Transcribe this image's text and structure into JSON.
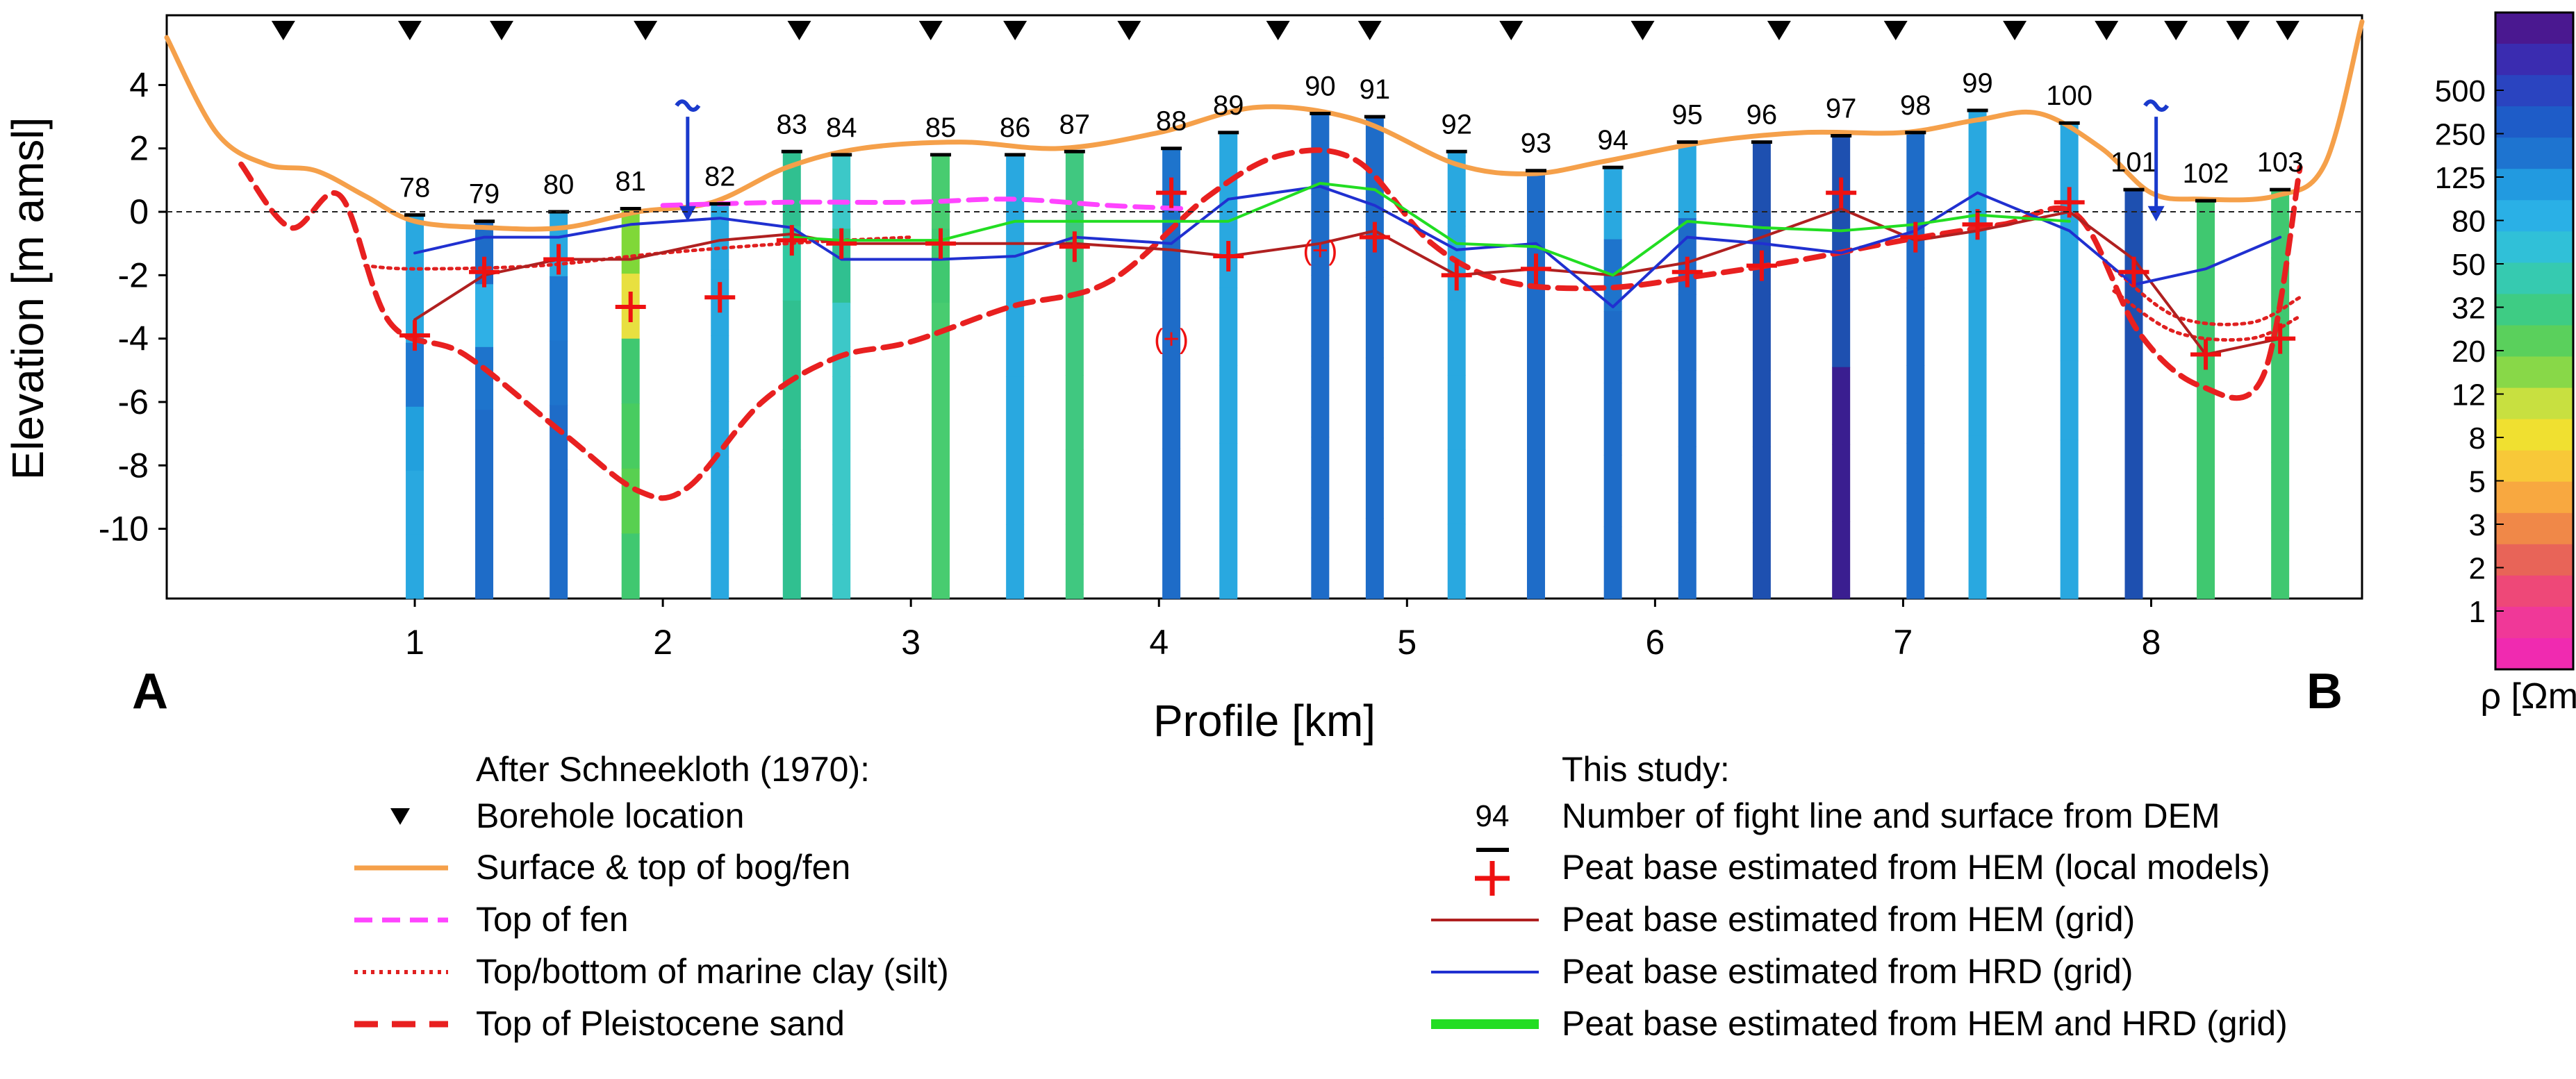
{
  "chart_data": {
    "type": "profile-section",
    "xlabel": "Profile [km]",
    "ylabel": "Elevation [m amsl]",
    "xlim": [
      0.0,
      8.85
    ],
    "ylim": [
      -12.2,
      6.2
    ],
    "xticks": [
      1,
      2,
      3,
      4,
      5,
      6,
      7,
      8
    ],
    "yticks": [
      4,
      2,
      0,
      -2,
      -4,
      -6,
      -8,
      -10
    ],
    "left_label": "A",
    "right_label": "B",
    "boreholes_km": [
      0.47,
      0.98,
      1.35,
      1.93,
      2.55,
      3.08,
      3.42,
      3.88,
      4.48,
      4.85,
      5.42,
      5.95,
      6.5,
      6.97,
      7.45,
      7.82,
      8.1,
      8.35,
      8.55
    ],
    "water_markers_km": [
      2.1,
      8.02
    ],
    "flight_lines": [
      {
        "id": "78",
        "x": 1.0,
        "surface": -0.1,
        "colors": [
          "#29a8e0",
          "#29a8e0",
          "#1e78d0",
          "#22a0dd",
          "#29a8e0",
          "#29a8e0"
        ]
      },
      {
        "id": "79",
        "x": 1.28,
        "surface": -0.3,
        "colors": [
          "#1e6cc8",
          "#2fb0e6",
          "#1e74cc",
          "#1e6cc8",
          "#1e6cc8",
          "#1e6cc8"
        ]
      },
      {
        "id": "80",
        "x": 1.58,
        "surface": 0.0,
        "colors": [
          "#29a8e0",
          "#1e78d0",
          "#1e74cc",
          "#1e6cc8",
          "#1e6cc8",
          "#1e6cc8"
        ]
      },
      {
        "id": "81",
        "x": 1.87,
        "surface": 0.1,
        "colors": [
          "#80d838",
          "#e8e040",
          "#40c870",
          "#48cc60",
          "#58d050",
          "#40c870"
        ]
      },
      {
        "id": "82",
        "x": 2.23,
        "surface": 0.25,
        "colors": [
          "#29a8e0",
          "#29a8e0",
          "#29a8e0",
          "#29a8e0",
          "#29a8e0",
          "#29a8e0"
        ]
      },
      {
        "id": "83",
        "x": 2.52,
        "surface": 1.9,
        "colors": [
          "#30c090",
          "#30c8a0",
          "#30c090",
          "#30c090",
          "#30c090",
          "#30c090"
        ]
      },
      {
        "id": "84",
        "x": 2.72,
        "surface": 1.8,
        "colors": [
          "#3cc8c8",
          "#30c090",
          "#3cc8c8",
          "#3cc8c8",
          "#3cc8c8",
          "#3cc8c8"
        ]
      },
      {
        "id": "85",
        "x": 3.12,
        "surface": 1.8,
        "colors": [
          "#48cc70",
          "#40c870",
          "#48cc70",
          "#48cc70",
          "#48cc70",
          "#48cc70"
        ]
      },
      {
        "id": "86",
        "x": 3.42,
        "surface": 1.8,
        "colors": [
          "#29a8e0",
          "#29a8e0",
          "#29a8e0",
          "#29a8e0",
          "#29a8e0",
          "#29a8e0"
        ]
      },
      {
        "id": "87",
        "x": 3.66,
        "surface": 1.9,
        "colors": [
          "#40c880",
          "#40c880",
          "#40c880",
          "#40c880",
          "#40c880",
          "#40c880"
        ]
      },
      {
        "id": "88",
        "x": 4.05,
        "surface": 2.0,
        "colors": [
          "#1e74cc",
          "#1e6cc8",
          "#1e6cc8",
          "#1e6cc8",
          "#1e6cc8",
          "#1e6cc8"
        ]
      },
      {
        "id": "89",
        "x": 4.28,
        "surface": 2.5,
        "colors": [
          "#29a8e0",
          "#29a8e0",
          "#29a8e0",
          "#29a8e0",
          "#29a8e0",
          "#29a8e0"
        ]
      },
      {
        "id": "90",
        "x": 4.65,
        "surface": 3.1,
        "colors": [
          "#1e6cc8",
          "#1e6cc8",
          "#1e6cc8",
          "#1e6cc8",
          "#1e6cc8",
          "#1e6cc8"
        ]
      },
      {
        "id": "91",
        "x": 4.87,
        "surface": 3.0,
        "colors": [
          "#1e6cc8",
          "#1e6cc8",
          "#1e6cc8",
          "#1e6cc8",
          "#1e6cc8",
          "#1e6cc8"
        ]
      },
      {
        "id": "92",
        "x": 5.2,
        "surface": 1.9,
        "colors": [
          "#29a8e0",
          "#29a8e0",
          "#29a8e0",
          "#29a8e0",
          "#29a8e0",
          "#29a8e0"
        ]
      },
      {
        "id": "93",
        "x": 5.52,
        "surface": 1.3,
        "colors": [
          "#1e6cc8",
          "#1e6cc8",
          "#1e6cc8",
          "#1e6cc8",
          "#1e6cc8",
          "#1e6cc8"
        ]
      },
      {
        "id": "94",
        "x": 5.83,
        "surface": 1.4,
        "colors": [
          "#29a8e0",
          "#1e74cc",
          "#1e6cc8",
          "#1e6cc8",
          "#1e6cc8",
          "#1e6cc8"
        ]
      },
      {
        "id": "95",
        "x": 6.13,
        "surface": 2.2,
        "colors": [
          "#29a8e0",
          "#1e6cc8",
          "#1e6cc8",
          "#1e6cc8",
          "#1e6cc8",
          "#1e6cc8"
        ]
      },
      {
        "id": "96",
        "x": 6.43,
        "surface": 2.2,
        "colors": [
          "#1e50b0",
          "#1e50b0",
          "#1e50b0",
          "#1e50b0",
          "#1e50b0",
          "#1e50b0"
        ]
      },
      {
        "id": "97",
        "x": 6.75,
        "surface": 2.4,
        "colors": [
          "#1e50b0",
          "#1e50b0",
          "#1e50b0",
          "#3a1e90",
          "#3a1e90",
          "#3a1e90"
        ]
      },
      {
        "id": "98",
        "x": 7.05,
        "surface": 2.5,
        "colors": [
          "#1e6cc8",
          "#1e6cc8",
          "#1e6cc8",
          "#1e6cc8",
          "#1e6cc8",
          "#1e6cc8"
        ]
      },
      {
        "id": "99",
        "x": 7.3,
        "surface": 3.2,
        "colors": [
          "#29a8e0",
          "#29a8e0",
          "#29a8e0",
          "#29a8e0",
          "#29a8e0",
          "#29a8e0"
        ]
      },
      {
        "id": "100",
        "x": 7.67,
        "surface": 2.8,
        "colors": [
          "#29a8e0",
          "#29a8e0",
          "#29a8e0",
          "#29a8e0",
          "#29a8e0",
          "#29a8e0"
        ]
      },
      {
        "id": "101",
        "x": 7.93,
        "surface": 0.7,
        "colors": [
          "#1e50b0",
          "#1e50b0",
          "#1e50b0",
          "#1e50b0",
          "#1e50b0",
          "#1e50b0"
        ]
      },
      {
        "id": "102",
        "x": 8.22,
        "surface": 0.35,
        "colors": [
          "#40c870",
          "#40c870",
          "#40c870",
          "#40c870",
          "#40c870",
          "#40c870"
        ]
      },
      {
        "id": "103",
        "x": 8.52,
        "surface": 0.7,
        "colors": [
          "#40c870",
          "#40c870",
          "#40c870",
          "#40c870",
          "#40c870",
          "#40c870"
        ]
      }
    ],
    "series": [
      {
        "name": "Surface & top of bog/fen",
        "color": "#f5a04a",
        "style": "solid",
        "x": [
          0.0,
          0.2,
          0.4,
          0.6,
          0.8,
          1.0,
          1.3,
          1.6,
          1.9,
          2.2,
          2.5,
          2.8,
          3.2,
          3.6,
          4.0,
          4.4,
          4.8,
          5.2,
          5.5,
          5.8,
          6.2,
          6.6,
          7.0,
          7.3,
          7.55,
          7.8,
          8.0,
          8.2,
          8.5,
          8.7,
          8.85
        ],
        "y": [
          5.5,
          2.5,
          1.5,
          1.3,
          0.5,
          -0.3,
          -0.5,
          -0.5,
          0.0,
          0.3,
          1.4,
          2.0,
          2.2,
          2.0,
          2.5,
          3.3,
          2.9,
          1.5,
          1.2,
          1.6,
          2.2,
          2.5,
          2.5,
          2.9,
          3.1,
          2.0,
          0.6,
          0.4,
          0.5,
          1.5,
          6.0
        ]
      },
      {
        "name": "Top of fen",
        "color": "#ff44ff",
        "style": "dash",
        "x": [
          2.0,
          2.5,
          3.0,
          3.4,
          3.8,
          4.1
        ],
        "y": [
          0.2,
          0.3,
          0.3,
          0.4,
          0.2,
          0.1
        ]
      },
      {
        "name": "Top/bottom of marine clay (silt)",
        "color": "#e02020",
        "style": "dot",
        "x": [
          0.8,
          1.0,
          1.5,
          2.0,
          2.5,
          3.0
        ],
        "y": [
          -1.7,
          -1.8,
          -1.7,
          -1.3,
          -1.0,
          -0.8
        ]
      },
      {
        "name": "Top/bottom of marine clay (silt)",
        "color": "#e02020",
        "style": "dot",
        "x": [
          7.85,
          8.1,
          8.4,
          8.6
        ],
        "y": [
          -1.8,
          -3.3,
          -3.5,
          -2.7
        ]
      },
      {
        "name": "Top/bottom of marine clay (silt)",
        "color": "#e02020",
        "style": "dot",
        "x": [
          7.85,
          8.1,
          8.4,
          8.6
        ],
        "y": [
          -2.5,
          -3.8,
          -4.0,
          -3.3
        ]
      },
      {
        "name": "Top of Pleistocene sand",
        "color": "#e82020",
        "style": "dash",
        "x": [
          0.3,
          0.5,
          0.7,
          0.9,
          1.2,
          1.6,
          1.9,
          2.1,
          2.4,
          2.7,
          3.0,
          3.4,
          3.8,
          4.2,
          4.5,
          4.8,
          5.1,
          5.4,
          5.8,
          6.2,
          6.6,
          7.0,
          7.4,
          7.7,
          7.95,
          8.2,
          8.45,
          8.6
        ],
        "y": [
          1.5,
          -0.5,
          0.5,
          -3.5,
          -4.5,
          -7.0,
          -8.8,
          -8.7,
          -6.0,
          -4.6,
          -4.1,
          -3.0,
          -2.2,
          0.5,
          1.8,
          1.6,
          -1.0,
          -2.2,
          -2.4,
          -2.0,
          -1.5,
          -0.9,
          -0.4,
          -0.1,
          -3.8,
          -5.5,
          -5.2,
          1.4
        ]
      },
      {
        "name": "Peat base estimated from HEM (grid)",
        "color": "#b02020",
        "style": "solid",
        "x": [
          1.0,
          1.28,
          1.58,
          1.87,
          2.23,
          2.52,
          2.72,
          3.12,
          3.42,
          3.66,
          4.05,
          4.28,
          4.65,
          4.87,
          5.2,
          5.52,
          5.83,
          6.13,
          6.43,
          6.75,
          7.05,
          7.3,
          7.67,
          7.93,
          8.22,
          8.52
        ],
        "y": [
          -3.4,
          -2.0,
          -1.5,
          -1.5,
          -0.9,
          -0.7,
          -1.0,
          -1.0,
          -1.0,
          -1.0,
          -1.2,
          -1.4,
          -1.0,
          -0.6,
          -2.0,
          -1.8,
          -2.0,
          -1.6,
          -0.8,
          0.1,
          -0.9,
          -0.6,
          0.0,
          -1.5,
          -4.5,
          -4.0
        ]
      },
      {
        "name": "Peat base estimated from HRD (grid)",
        "color": "#2030d0",
        "style": "solid",
        "x": [
          1.0,
          1.28,
          1.58,
          1.87,
          2.23,
          2.52,
          2.72,
          3.12,
          3.42,
          3.66,
          4.05,
          4.28,
          4.65,
          4.87,
          5.2,
          5.52,
          5.83,
          6.13,
          6.43,
          6.75,
          7.05,
          7.3,
          7.67,
          7.93,
          8.22,
          8.52
        ],
        "y": [
          -1.3,
          -0.8,
          -0.8,
          -0.4,
          -0.2,
          -0.5,
          -1.5,
          -1.5,
          -1.4,
          -0.8,
          -1.0,
          0.4,
          0.8,
          0.2,
          -1.2,
          -1.0,
          -3.0,
          -0.8,
          -1.0,
          -1.3,
          -0.6,
          0.6,
          -0.6,
          -2.3,
          -1.8,
          -0.8
        ]
      },
      {
        "name": "Peat base estimated from HEM and HRD (grid)",
        "color": "#22dd22",
        "style": "thick",
        "x": [
          2.52,
          2.72,
          3.12,
          3.42,
          3.66,
          4.05,
          4.28,
          4.65,
          4.87,
          5.2,
          5.52,
          5.83,
          6.13,
          6.43,
          6.75,
          7.05,
          7.3,
          7.67
        ],
        "y": [
          -0.8,
          -0.9,
          -0.9,
          -0.3,
          -0.3,
          -0.3,
          -0.3,
          0.9,
          0.7,
          -1.0,
          -1.1,
          -2.0,
          -0.3,
          -0.5,
          -0.6,
          -0.4,
          -0.1,
          -0.3
        ]
      }
    ],
    "peat_base_crosses": [
      {
        "x": 1.0,
        "y": -3.9
      },
      {
        "x": 1.28,
        "y": -1.9
      },
      {
        "x": 1.58,
        "y": -1.5
      },
      {
        "x": 1.87,
        "y": -3.0
      },
      {
        "x": 2.23,
        "y": -2.7
      },
      {
        "x": 2.52,
        "y": -0.9
      },
      {
        "x": 2.72,
        "y": -1.0
      },
      {
        "x": 3.12,
        "y": -1.0
      },
      {
        "x": 3.66,
        "y": -1.1
      },
      {
        "x": 4.05,
        "y": 0.6
      },
      {
        "x": 4.28,
        "y": -1.4
      },
      {
        "x": 4.87,
        "y": -0.8
      },
      {
        "x": 5.2,
        "y": -2.0
      },
      {
        "x": 5.52,
        "y": -1.8
      },
      {
        "x": 6.13,
        "y": -1.9
      },
      {
        "x": 6.43,
        "y": -1.7
      },
      {
        "x": 6.75,
        "y": 0.6
      },
      {
        "x": 7.05,
        "y": -0.8
      },
      {
        "x": 7.3,
        "y": -0.4
      },
      {
        "x": 7.67,
        "y": 0.3
      },
      {
        "x": 7.93,
        "y": -1.9
      },
      {
        "x": 8.22,
        "y": -4.5
      },
      {
        "x": 8.52,
        "y": -4.0
      }
    ],
    "bracket_labels": [
      {
        "text": "(+)",
        "x": 4.05,
        "y": -4.0
      },
      {
        "text": "(+)",
        "x": 4.65,
        "y": -1.2
      }
    ],
    "colorbar": {
      "label": "ρ [Ωm]",
      "ticks": [
        "500",
        "250",
        "125",
        "80",
        "50",
        "32",
        "20",
        "12",
        "8",
        "5",
        "3",
        "2",
        "1"
      ],
      "colors": [
        "#4a1890",
        "#3a2cb0",
        "#2a44c0",
        "#1e5cc8",
        "#1e74d0",
        "#229ae0",
        "#2ab0e6",
        "#30c0d8",
        "#36cab0",
        "#3ecc84",
        "#5ad05c",
        "#88d848",
        "#c8e040",
        "#f0e030",
        "#f8c838",
        "#f8a840",
        "#f08848",
        "#e86458",
        "#ee4878",
        "#f03898",
        "#f02ab0"
      ]
    }
  },
  "legend": {
    "left_header": "After Schneekloth (1970):",
    "borehole": "Borehole location",
    "surface": "Surface & top of bog/fen",
    "fen": "Top of fen",
    "clay": "Top/bottom of marine clay (silt)",
    "sand": "Top of Pleistocene sand",
    "right_header": "This study:",
    "flight_number": "94",
    "flight_line": "Number of fight line and surface from DEM",
    "peat_hem_local": "Peat base estimated from HEM (local models)",
    "peat_hem_grid": "Peat base estimated from HEM (grid)",
    "peat_hrd_grid": "Peat base estimated from HRD (grid)",
    "peat_hem_hrd_grid": "Peat base estimated from HEM and HRD (grid)"
  },
  "colors": {
    "surface": "#f5a04a",
    "fen": "#ff44ff",
    "clay": "#e02020",
    "sand": "#e82020",
    "hem_grid": "#b02020",
    "hrd_grid": "#2030d0",
    "combined": "#22dd22",
    "cross": "#ee1111",
    "water": "#1a3acc"
  }
}
